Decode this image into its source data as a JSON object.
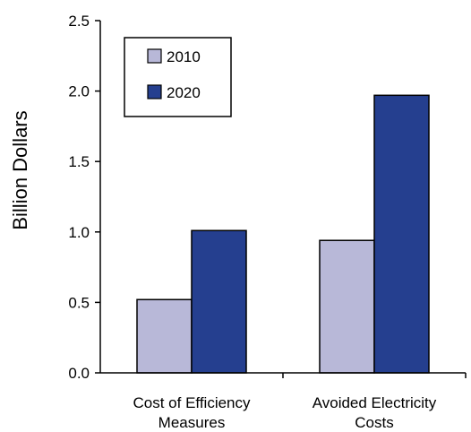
{
  "chart_data": {
    "type": "bar",
    "ylabel": "Billion Dollars",
    "ylim": [
      0,
      2.5
    ],
    "yticks": [
      "0.0",
      "0.5",
      "1.0",
      "1.5",
      "2.0",
      "2.5"
    ],
    "categories": [
      [
        "Cost of Efficiency",
        "Measures"
      ],
      [
        "Avoided Electricity",
        "Costs"
      ]
    ],
    "series": [
      {
        "name": "2010",
        "color": "#b8b8d8",
        "values": [
          0.52,
          0.94
        ]
      },
      {
        "name": "2020",
        "color": "#253f8f",
        "values": [
          1.01,
          1.97
        ]
      }
    ],
    "legend_position": "top-left",
    "grid": false
  }
}
